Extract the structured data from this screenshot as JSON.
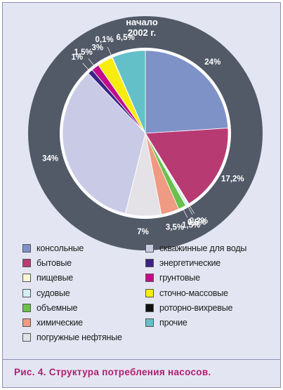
{
  "caption": "Рис. 4. Структура потребления насосов.",
  "ring_label_line1": "начало",
  "ring_label_line2": "2002 г.",
  "colors": {
    "ring": "#525a68",
    "figure_background": "#e3e6f2",
    "caption_text": "#b01e6f"
  },
  "chart_data": {
    "type": "pie",
    "title": "",
    "start": "top, clockwise",
    "slices": [
      {
        "name": "консольные",
        "value": 24,
        "label": "24%",
        "color": "#7f92c8"
      },
      {
        "name": "бытовые",
        "value": 17.2,
        "label": "17,2%",
        "color": "#b83a72"
      },
      {
        "name": "пищевые",
        "value": 0.2,
        "label": "0,2%",
        "color": "#fbf7d6"
      },
      {
        "name": "судовые",
        "value": 0.5,
        "label": "0,5%",
        "color": "#d5eef3"
      },
      {
        "name": "объемные",
        "value": 1.5,
        "label": "1,5%",
        "color": "#6cc04c"
      },
      {
        "name": "химические",
        "value": 3.5,
        "label": "3,5%",
        "color": "#ef9a82"
      },
      {
        "name": "погружные нефтяные",
        "value": 7,
        "label": "7%",
        "color": "#e4e2e6"
      },
      {
        "name": "скважинные для воды",
        "value": 34,
        "label": "34%",
        "color": "#c9cbe6"
      },
      {
        "name": "энергетические",
        "value": 1,
        "label": "1%",
        "color": "#3c2286"
      },
      {
        "name": "грунтовые",
        "value": 1.5,
        "label": "1,5%",
        "color": "#c10d8c"
      },
      {
        "name": "сточно-массовые",
        "value": 3,
        "label": "3%",
        "color": "#f7ec0f"
      },
      {
        "name": "роторно-вихревые",
        "value": 0.1,
        "label": "0,1%",
        "color": "#111111"
      },
      {
        "name": "прочие",
        "value": 6.5,
        "label": "6,5%",
        "color": "#64c0c8"
      }
    ],
    "legend": {
      "placement": "bottom, two columns",
      "left_column": [
        "консольные",
        "бытовые",
        "пищевые",
        "судовые",
        "объемные",
        "химические",
        "погружные нефтяные"
      ],
      "right_column": [
        "скважинные для воды",
        "энергетические",
        "грунтовые",
        "сточно-массовые",
        "роторно-вихревые",
        "прочие"
      ]
    }
  }
}
